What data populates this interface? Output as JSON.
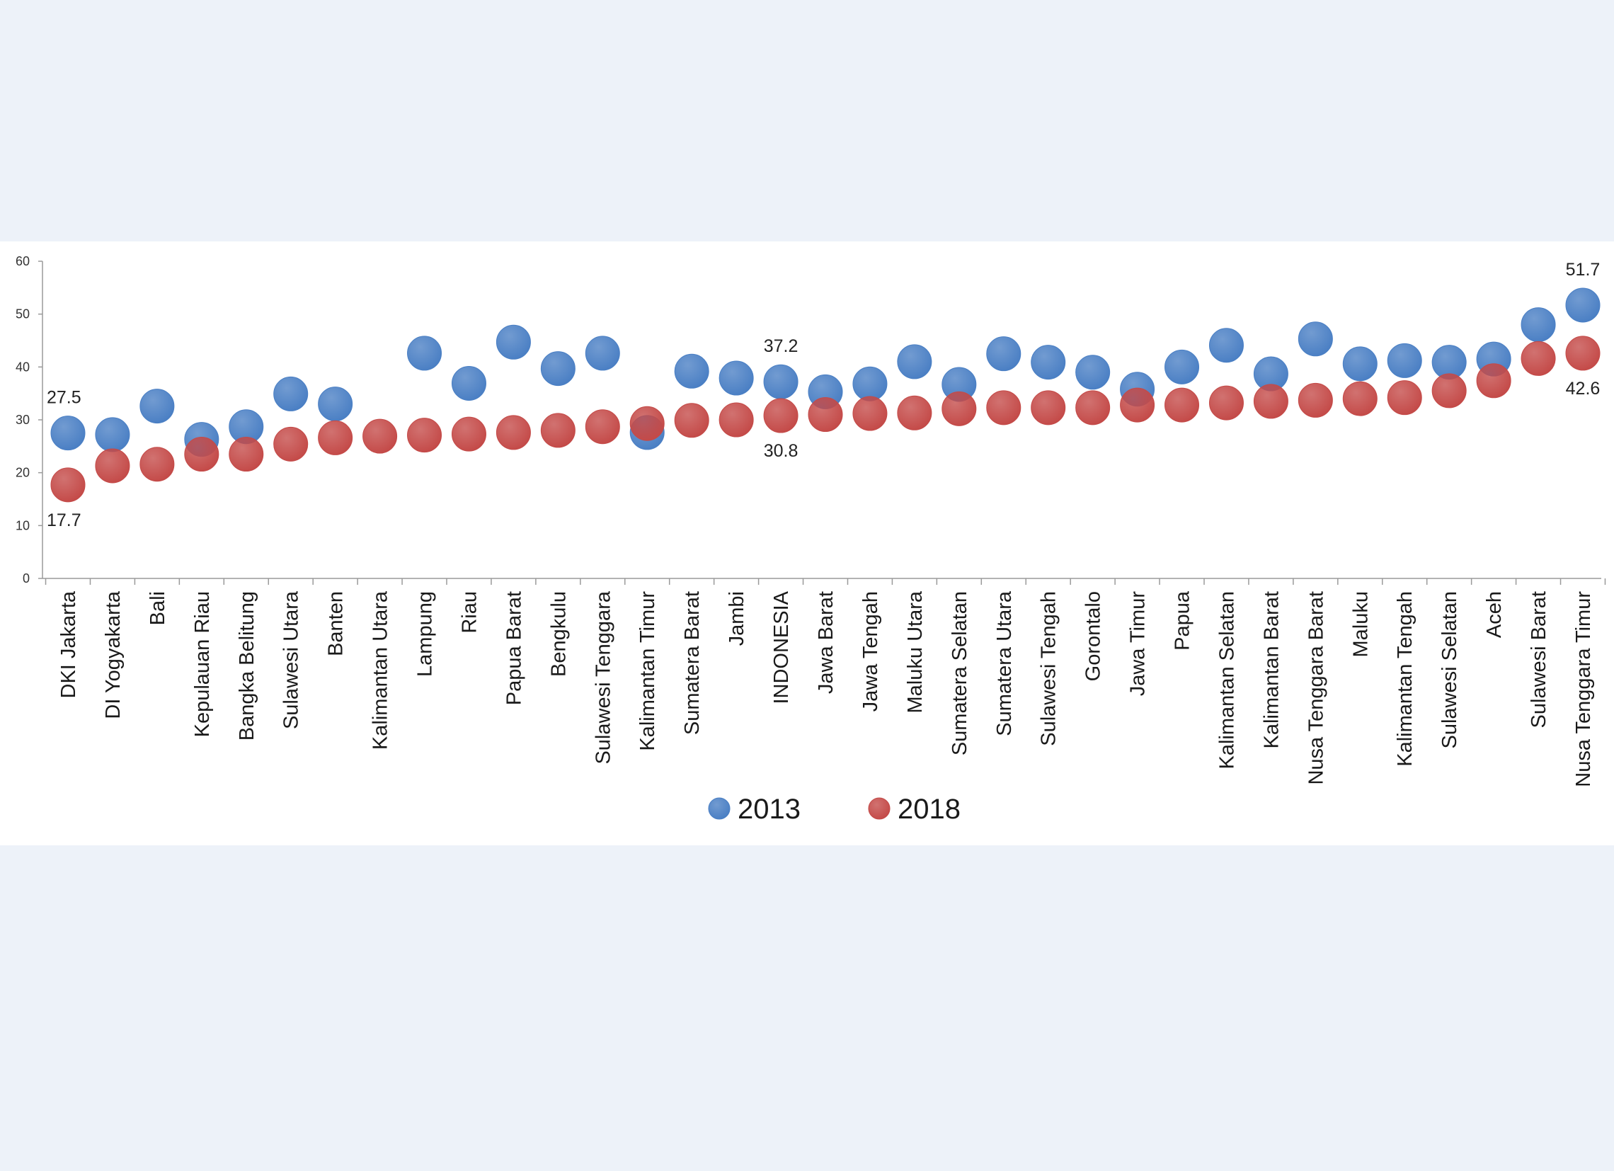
{
  "chart_data": {
    "type": "scatter",
    "title": "",
    "xlabel": "",
    "ylabel": "",
    "ylim": [
      0,
      60
    ],
    "yticks": [
      0,
      10,
      20,
      30,
      40,
      50,
      60
    ],
    "grid": false,
    "legend_position": "bottom-center",
    "categories": [
      "DKI Jakarta",
      "DI Yogyakarta",
      "Bali",
      "Kepulauan Riau",
      "Bangka Belitung",
      "Sulawesi Utara",
      "Banten",
      "Kalimantan Utara",
      "Lampung",
      "Riau",
      "Papua Barat",
      "Bengkulu",
      "Sulawesi Tenggara",
      "Kalimantan Timur",
      "Sumatera Barat",
      "Jambi",
      "INDONESIA",
      "Jawa Barat",
      "Jawa Tengah",
      "Maluku Utara",
      "Sumatera Selatan",
      "Sumatera Utara",
      "Sulawesi Tengah",
      "Gorontalo",
      "Jawa Timur",
      "Papua",
      "Kalimantan Selatan",
      "Kalimantan Barat",
      "Nusa Tenggara Barat",
      "Maluku",
      "Kalimantan Tengah",
      "Sulawesi Selatan",
      "Aceh",
      "Sulawesi Barat",
      "Nusa Tenggara Timur"
    ],
    "series": [
      {
        "name": "2013",
        "color": "#4a7fc4",
        "values": [
          27.5,
          27.2,
          32.6,
          26.3,
          28.7,
          34.9,
          33.0,
          null,
          42.6,
          36.9,
          44.7,
          39.7,
          42.6,
          27.6,
          39.2,
          37.9,
          37.2,
          35.3,
          36.8,
          41.0,
          36.7,
          42.5,
          40.9,
          39.0,
          35.8,
          40.0,
          44.1,
          38.7,
          45.3,
          40.6,
          41.2,
          40.9,
          41.5,
          48.0,
          51.7
        ],
        "point_labels": [
          {
            "index": 0,
            "text": "27.5"
          },
          {
            "index": 16,
            "text": "37.2"
          },
          {
            "index": 34,
            "text": "51.7"
          }
        ]
      },
      {
        "name": "2018",
        "color": "#c44a48",
        "values": [
          17.7,
          21.3,
          21.6,
          23.5,
          23.5,
          25.4,
          26.6,
          26.9,
          27.1,
          27.3,
          27.6,
          28.0,
          28.7,
          29.3,
          29.9,
          30.0,
          30.8,
          31.0,
          31.2,
          31.3,
          32.1,
          32.3,
          32.3,
          32.3,
          32.8,
          32.8,
          33.2,
          33.5,
          33.7,
          34.0,
          34.2,
          35.5,
          37.4,
          41.6,
          42.6
        ],
        "point_labels": [
          {
            "index": 0,
            "text": "17.7"
          },
          {
            "index": 16,
            "text": "30.8"
          },
          {
            "index": 34,
            "text": "42.6"
          }
        ]
      }
    ]
  }
}
